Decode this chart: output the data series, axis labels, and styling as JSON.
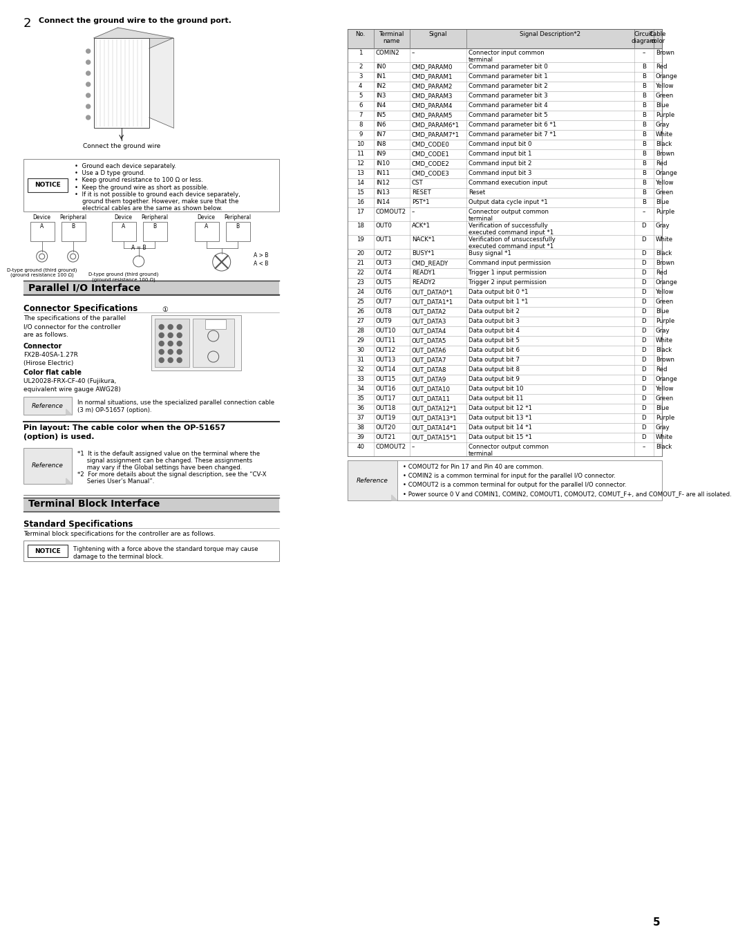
{
  "bg_color": "#ffffff",
  "table_rows": [
    [
      "1",
      "COMIN2",
      "–",
      "Connector input common\nterminal",
      "–",
      "Brown"
    ],
    [
      "2",
      "IN0",
      "CMD_PARAM0",
      "Command parameter bit 0",
      "B",
      "Red"
    ],
    [
      "3",
      "IN1",
      "CMD_PARAM1",
      "Command parameter bit 1",
      "B",
      "Orange"
    ],
    [
      "4",
      "IN2",
      "CMD_PARAM2",
      "Command parameter bit 2",
      "B",
      "Yellow"
    ],
    [
      "5",
      "IN3",
      "CMD_PARAM3",
      "Command parameter bit 3",
      "B",
      "Green"
    ],
    [
      "6",
      "IN4",
      "CMD_PARAM4",
      "Command parameter bit 4",
      "B",
      "Blue"
    ],
    [
      "7",
      "IN5",
      "CMD_PARAM5",
      "Command parameter bit 5",
      "B",
      "Purple"
    ],
    [
      "8",
      "IN6",
      "CMD_PARAM6*1",
      "Command parameter bit 6 *1",
      "B",
      "Gray"
    ],
    [
      "9",
      "IN7",
      "CMD_PARAM7*1",
      "Command parameter bit 7 *1",
      "B",
      "White"
    ],
    [
      "10",
      "IN8",
      "CMD_CODE0",
      "Command input bit 0",
      "B",
      "Black"
    ],
    [
      "11",
      "IN9",
      "CMD_CODE1",
      "Command input bit 1",
      "B",
      "Brown"
    ],
    [
      "12",
      "IN10",
      "CMD_CODE2",
      "Command input bit 2",
      "B",
      "Red"
    ],
    [
      "13",
      "IN11",
      "CMD_CODE3",
      "Command input bit 3",
      "B",
      "Orange"
    ],
    [
      "14",
      "IN12",
      "CST",
      "Command execution input",
      "B",
      "Yellow"
    ],
    [
      "15",
      "IN13",
      "RESET",
      "Reset",
      "B",
      "Green"
    ],
    [
      "16",
      "IN14",
      "PST*1",
      "Output data cycle input *1",
      "B",
      "Blue"
    ],
    [
      "17",
      "COMOUT2",
      "–",
      "Connector output common\nterminal",
      "–",
      "Purple"
    ],
    [
      "18",
      "OUT0",
      "ACK*1",
      "Verification of successfully\nexecuted command input *1",
      "D",
      "Gray"
    ],
    [
      "19",
      "OUT1",
      "NACK*1",
      "Verification of unsuccessfully\nexecuted command input *1",
      "D",
      "White"
    ],
    [
      "20",
      "OUT2",
      "BUSY*1",
      "Busy signal *1",
      "D",
      "Black"
    ],
    [
      "21",
      "OUT3",
      "CMD_READY",
      "Command input permission",
      "D",
      "Brown"
    ],
    [
      "22",
      "OUT4",
      "READY1",
      "Trigger 1 input permission",
      "D",
      "Red"
    ],
    [
      "23",
      "OUT5",
      "READY2",
      "Trigger 2 input permission",
      "D",
      "Orange"
    ],
    [
      "24",
      "OUT6",
      "OUT_DATA0*1",
      "Data output bit 0 *1",
      "D",
      "Yellow"
    ],
    [
      "25",
      "OUT7",
      "OUT_DATA1*1",
      "Data output bit 1 *1",
      "D",
      "Green"
    ],
    [
      "26",
      "OUT8",
      "OUT_DATA2",
      "Data output bit 2",
      "D",
      "Blue"
    ],
    [
      "27",
      "OUT9",
      "OUT_DATA3",
      "Data output bit 3",
      "D",
      "Purple"
    ],
    [
      "28",
      "OUT10",
      "OUT_DATA4",
      "Data output bit 4",
      "D",
      "Gray"
    ],
    [
      "29",
      "OUT11",
      "OUT_DATA5",
      "Data output bit 5",
      "D",
      "White"
    ],
    [
      "30",
      "OUT12",
      "OUT_DATA6",
      "Data output bit 6",
      "D",
      "Black"
    ],
    [
      "31",
      "OUT13",
      "OUT_DATA7",
      "Data output bit 7",
      "D",
      "Brown"
    ],
    [
      "32",
      "OUT14",
      "OUT_DATA8",
      "Data output bit 8",
      "D",
      "Red"
    ],
    [
      "33",
      "OUT15",
      "OUT_DATA9",
      "Data output bit 9",
      "D",
      "Orange"
    ],
    [
      "34",
      "OUT16",
      "OUT_DATA10",
      "Data output bit 10",
      "D",
      "Yellow"
    ],
    [
      "35",
      "OUT17",
      "OUT_DATA11",
      "Data output bit 11",
      "D",
      "Green"
    ],
    [
      "36",
      "OUT18",
      "OUT_DATA12*1",
      "Data output bit 12 *1",
      "D",
      "Blue"
    ],
    [
      "37",
      "OUT19",
      "OUT_DATA13*1",
      "Data output bit 13 *1",
      "D",
      "Purple"
    ],
    [
      "38",
      "OUT20",
      "OUT_DATA14*1",
      "Data output bit 14 *1",
      "D",
      "Gray"
    ],
    [
      "39",
      "OUT21",
      "OUT_DATA15*1",
      "Data output bit 15 *1",
      "D",
      "White"
    ],
    [
      "40",
      "COMOUT2",
      "–",
      "Connector output common\nterminal",
      "–",
      "Black"
    ]
  ],
  "ref_bullets": [
    "COMOUT2 for Pin 17 and Pin 40 are common.",
    "COMIN2 is a common terminal for input for the parallel I/O connector.",
    "COMOUT2 is a common terminal for output for the parallel I/O connector.",
    "Power source 0 V and COMIN1, COMIN2, COMOUT1, COMOUT2, COMUT_F+, and COMOUT_F- are all isolated."
  ],
  "step_title": "Connect the ground wire to the ground port.",
  "img_caption": "Connect the ground wire",
  "notice_bullets": [
    "Ground each device separately.",
    "Use a D type ground.",
    "Keep ground resistance to 100 Ω or less.",
    "Keep the ground wire as short as possible.",
    "If it is not possible to ground each device separately, ground them together. However, make sure that the electrical cables are the same as shown below."
  ],
  "parallel_title": "Parallel I/O Interface",
  "connector_title": "Connector Specifications",
  "connector_desc_lines": [
    "The specifications of the parallel",
    "I/O connector for the controller",
    "are as follows."
  ],
  "connector_label": "Connector",
  "connector_model": "FX2B-40SA-1.27R",
  "connector_brand": "(Hirose Electric)",
  "cable_label": "Color flat cable",
  "cable_line1": "UL20028-FRX-CF-40 (Fujikura,",
  "cable_line2": "equivalent wire gauge AWG28)",
  "ref_text_line1": "In normal situations, use the specialized parallel connection cable",
  "ref_text_line2": "(3 m) OP-51657 (option).",
  "pin_layout_line1": "Pin layout: The cable color when the OP-51657",
  "pin_layout_line2": "(option) is used.",
  "fn1_lines": [
    "*1  It is the default assigned value on the terminal where the",
    "     signal assignment can be changed. These assignments",
    "     may vary if the Global settings have been changed."
  ],
  "fn2_lines": [
    "*2  For more details about the signal description, see the “CV-X",
    "     Series User’s Manual”."
  ],
  "terminal_title": "Terminal Block Interface",
  "standard_title": "Standard Specifications",
  "terminal_desc": "Terminal block specifications for the controller are as follows.",
  "notice2_text_line1": "Tightening with a force above the standard torque may cause",
  "notice2_text_line2": "damage to the terminal block.",
  "page_num": "5"
}
